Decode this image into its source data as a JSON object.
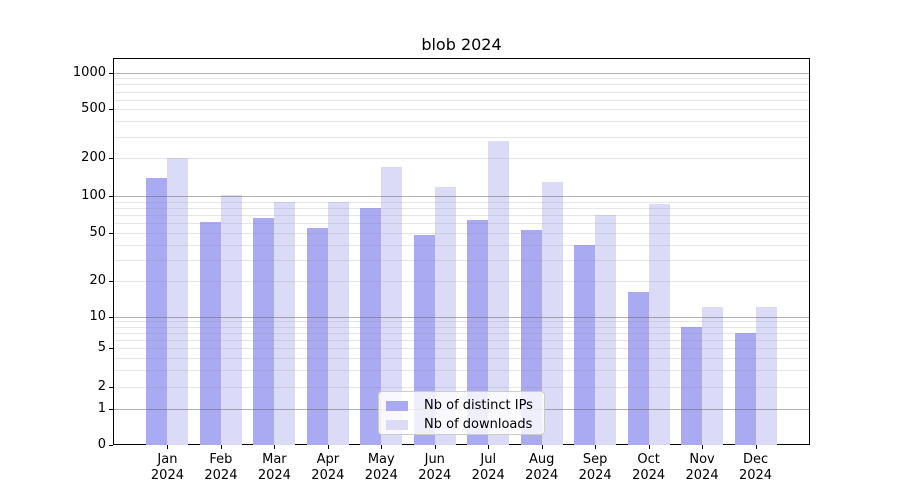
{
  "chart_data": {
    "type": "bar",
    "title": "blob 2024",
    "categories": [
      "Jan 2024",
      "Feb 2024",
      "Mar 2024",
      "Apr 2024",
      "May 2024",
      "Jun 2024",
      "Jul 2024",
      "Aug 2024",
      "Sep 2024",
      "Oct 2024",
      "Nov 2024",
      "Dec 2024"
    ],
    "series": [
      {
        "name": "Nb of distinct IPs",
        "color": "#aaaaf2",
        "values": [
          140,
          62,
          66,
          55,
          80,
          48,
          64,
          53,
          40,
          16,
          8,
          7
        ]
      },
      {
        "name": "Nb of downloads",
        "color": "#dbdbf8",
        "values": [
          200,
          101,
          90,
          90,
          170,
          118,
          275,
          130,
          70,
          86,
          12,
          12
        ]
      }
    ],
    "xlabel": "",
    "ylabel": "",
    "yscale": "symlog",
    "yticks": [
      0,
      1,
      2,
      5,
      10,
      20,
      50,
      100,
      200,
      500,
      1000
    ],
    "ylim": [
      0,
      1300
    ],
    "grid": true,
    "legend_position": "lower center inside"
  },
  "colors": {
    "bar_distinct_ips": "#aaaaf2",
    "bar_downloads": "#dbdbf8",
    "grid_major": "#b0b0b0",
    "grid_minor": "#e6e6e6",
    "axis": "#000000",
    "legend_border": "#cccccc",
    "background": "#ffffff"
  }
}
